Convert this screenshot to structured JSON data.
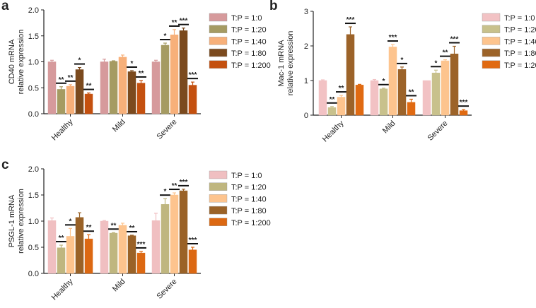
{
  "chart_data": [
    {
      "panel": "a",
      "type": "bar",
      "ylabel": [
        "CD40 mRNA",
        "relative expression"
      ],
      "ylim": [
        0,
        2.0
      ],
      "yticks": [
        "0.0",
        "0.5",
        "1.0",
        "1.5",
        "2.0"
      ],
      "ytick_values": [
        0,
        0.5,
        1.0,
        1.5,
        2.0
      ],
      "categories": [
        "Healthy",
        "Mild",
        "Severe"
      ],
      "legend_position": "right",
      "series": [
        {
          "name": "T:P = 1:0",
          "color": "#d69a9c",
          "values": [
            1.0,
            1.0,
            1.0
          ],
          "errors": [
            0.03,
            0.05,
            0.03
          ],
          "sig": [
            "",
            "",
            ""
          ]
        },
        {
          "name": "T:P = 1:20",
          "color": "#a59b62",
          "values": [
            0.47,
            1.01,
            1.32
          ],
          "errors": [
            0.05,
            0.01,
            0.04
          ],
          "sig": [
            "**",
            "",
            "*"
          ]
        },
        {
          "name": "T:P = 1:40",
          "color": "#f7b07a",
          "values": [
            0.53,
            1.09,
            1.52
          ],
          "errors": [
            0.03,
            0.04,
            0.1
          ],
          "sig": [
            "**",
            "",
            "**"
          ]
        },
        {
          "name": "T:P = 1:80",
          "color": "#7b4a1e",
          "values": [
            0.85,
            0.81,
            1.6
          ],
          "errors": [
            0.04,
            0.02,
            0.05
          ],
          "sig": [
            "*",
            "*",
            "***"
          ]
        },
        {
          "name": "T:P = 1:200",
          "color": "#c4500f",
          "values": [
            0.38,
            0.59,
            0.55
          ],
          "errors": [
            0.02,
            0.05,
            0.06
          ],
          "sig": [
            "**",
            "**",
            "***"
          ]
        }
      ]
    },
    {
      "panel": "b",
      "type": "bar",
      "ylabel": [
        "Mac-1 mRNA",
        "relative expression"
      ],
      "ylim": [
        0,
        3
      ],
      "yticks": [
        "0",
        "1",
        "2",
        "3"
      ],
      "ytick_values": [
        0,
        1,
        2,
        3
      ],
      "categories": [
        "Healthy",
        "Mild",
        "Severe"
      ],
      "legend_position": "right",
      "series": [
        {
          "name": "T:P = 1:0",
          "color": "#f2c2c4",
          "values": [
            1.0,
            1.0,
            1.0
          ],
          "errors": [
            0.02,
            0.03,
            0.0
          ],
          "sig": [
            "",
            "",
            ""
          ]
        },
        {
          "name": "T:P = 1:20",
          "color": "#c8c18c",
          "values": [
            0.22,
            0.76,
            1.22
          ],
          "errors": [
            0.03,
            0.02,
            0.08
          ],
          "sig": [
            "**",
            "*",
            "*"
          ]
        },
        {
          "name": "T:P = 1:40",
          "color": "#fdc48e",
          "values": [
            0.52,
            1.97,
            1.57
          ],
          "errors": [
            0.05,
            0.07,
            0.03
          ],
          "sig": [
            "**",
            "***",
            "**"
          ]
        },
        {
          "name": "T:P = 1:80",
          "color": "#9c6329",
          "values": [
            2.33,
            1.32,
            1.77
          ],
          "errors": [
            0.22,
            0.07,
            0.22
          ],
          "sig": [
            "***",
            "*",
            "***"
          ]
        },
        {
          "name": "T:P = 1:200",
          "color": "#e06a12",
          "values": [
            0.87,
            0.37,
            0.13
          ],
          "errors": [
            0.02,
            0.09,
            0.03
          ],
          "sig": [
            "",
            "**",
            "***"
          ]
        }
      ]
    },
    {
      "panel": "c",
      "type": "bar",
      "ylabel": [
        "PSGL-1 mRNA",
        "relative expression"
      ],
      "ylim": [
        0,
        2.0
      ],
      "yticks": [
        "0.0",
        "0.5",
        "1.0",
        "1.5",
        "2.0"
      ],
      "ytick_values": [
        0,
        0.5,
        1.0,
        1.5,
        2.0
      ],
      "categories": [
        "Healthy",
        "Mild",
        "Severe"
      ],
      "legend_position": "right",
      "series": [
        {
          "name": "T:P = 1:0",
          "color": "#f0bfc1",
          "values": [
            1.01,
            1.0,
            1.01
          ],
          "errors": [
            0.05,
            0.01,
            0.14
          ],
          "sig": [
            "",
            "",
            ""
          ]
        },
        {
          "name": "T:P = 1:20",
          "color": "#bfb67f",
          "values": [
            0.49,
            0.77,
            1.32
          ],
          "errors": [
            0.05,
            0.01,
            0.11
          ],
          "sig": [
            "**",
            "**",
            "*"
          ]
        },
        {
          "name": "T:P = 1:40",
          "color": "#fdc48e",
          "values": [
            0.71,
            0.92,
            1.5
          ],
          "errors": [
            0.15,
            0.04,
            0.04
          ],
          "sig": [
            "*",
            "",
            "**"
          ]
        },
        {
          "name": "T:P = 1:80",
          "color": "#9a6227",
          "values": [
            1.07,
            0.72,
            1.58
          ],
          "errors": [
            0.09,
            0.01,
            0.03
          ],
          "sig": [
            "",
            "**",
            "***"
          ]
        },
        {
          "name": "T:P = 1:200",
          "color": "#dc6812",
          "values": [
            0.66,
            0.39,
            0.45
          ],
          "errors": [
            0.08,
            0.03,
            0.05
          ],
          "sig": [
            "**",
            "***",
            "***"
          ]
        }
      ]
    }
  ]
}
